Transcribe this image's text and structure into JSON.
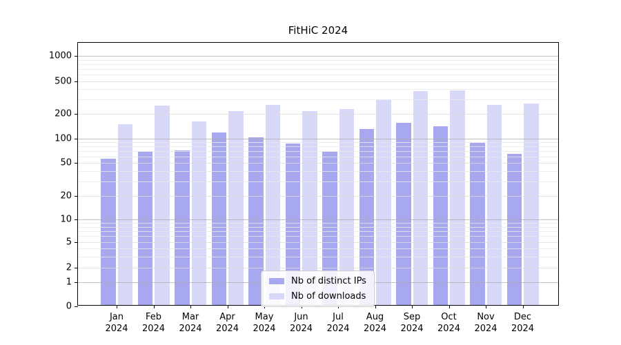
{
  "chart_data": {
    "type": "bar",
    "title": "FitHiC 2024",
    "categories": [
      "Jan",
      "Feb",
      "Mar",
      "Apr",
      "May",
      "Jun",
      "Jul",
      "Aug",
      "Sep",
      "Oct",
      "Nov",
      "Dec"
    ],
    "year_label": "2024",
    "series": [
      {
        "name": "Nb of distinct IPs",
        "color": "#a8a8ef",
        "values": [
          54,
          66,
          68,
          115,
          100,
          83,
          66,
          127,
          150,
          137,
          86,
          62
        ]
      },
      {
        "name": "Nb of downloads",
        "color": "#d8d8f8",
        "values": [
          143,
          242,
          157,
          210,
          246,
          210,
          220,
          290,
          368,
          375,
          250,
          260
        ]
      }
    ],
    "xlabel": "",
    "ylabel": "",
    "y_axis": {
      "scale": "symlog",
      "ticks": [
        0,
        1,
        2,
        5,
        10,
        20,
        50,
        100,
        200,
        500,
        1000
      ],
      "minor_gridlines": [
        3,
        4,
        6,
        7,
        8,
        9,
        30,
        40,
        60,
        70,
        80,
        90,
        300,
        400,
        600,
        700,
        800,
        900
      ],
      "ylim": [
        0,
        1450
      ]
    },
    "grid": "on, drawn above bars",
    "legend_position": "lower center"
  }
}
